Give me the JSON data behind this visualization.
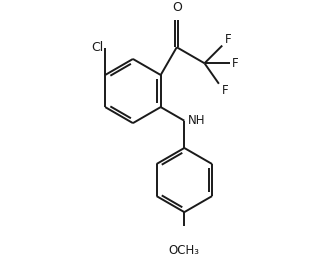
{
  "background": "#ffffff",
  "bond_color": "#1a1a1a",
  "bond_lw": 1.4,
  "font_color": "#1a1a1a",
  "font_size": 8.5,
  "fig_w": 3.3,
  "fig_h": 2.58,
  "dpi": 100,
  "xlim": [
    -0.5,
    5.5
  ],
  "ylim": [
    -4.2,
    2.2
  ]
}
